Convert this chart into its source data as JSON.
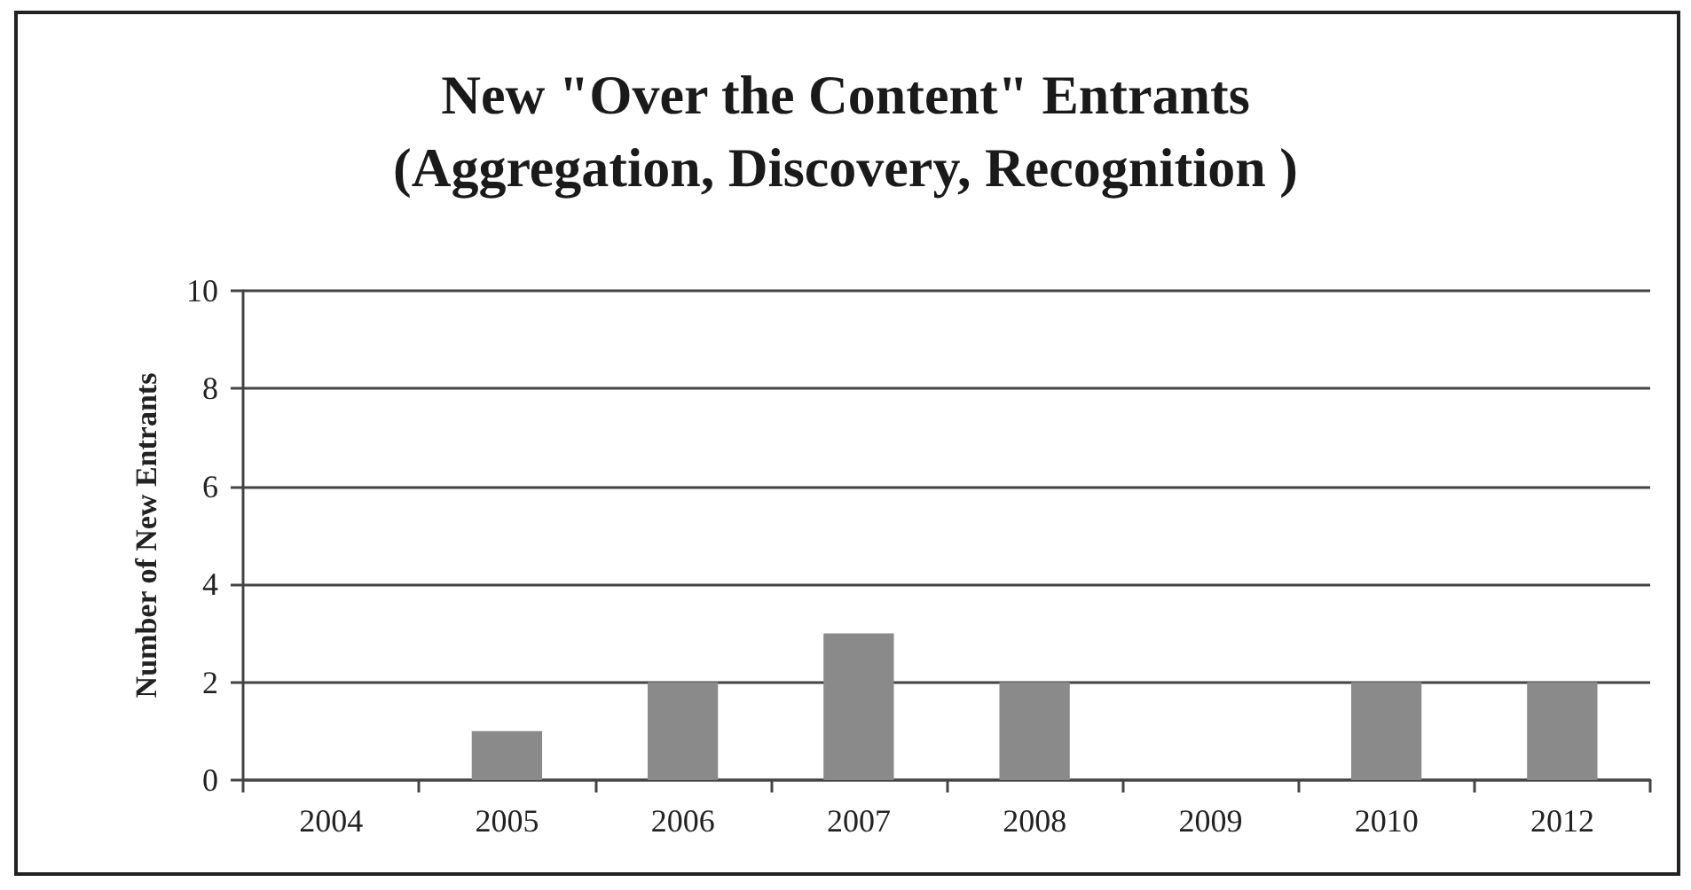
{
  "chart_data": {
    "type": "bar",
    "title": "New \"Over the Content\" Entrants\n(Aggregation, Discovery, Recognition )",
    "ylabel": "Number of New Entrants",
    "categories": [
      "2004",
      "2005",
      "2006",
      "2007",
      "2008",
      "2009",
      "2010",
      "2012"
    ],
    "values": [
      0,
      1,
      2,
      3,
      2,
      0,
      2,
      2
    ],
    "color": "#8a8a8a",
    "ylim": [
      0,
      10
    ],
    "yticks": [
      0,
      2,
      4,
      6,
      8,
      10
    ],
    "grid": "y"
  }
}
